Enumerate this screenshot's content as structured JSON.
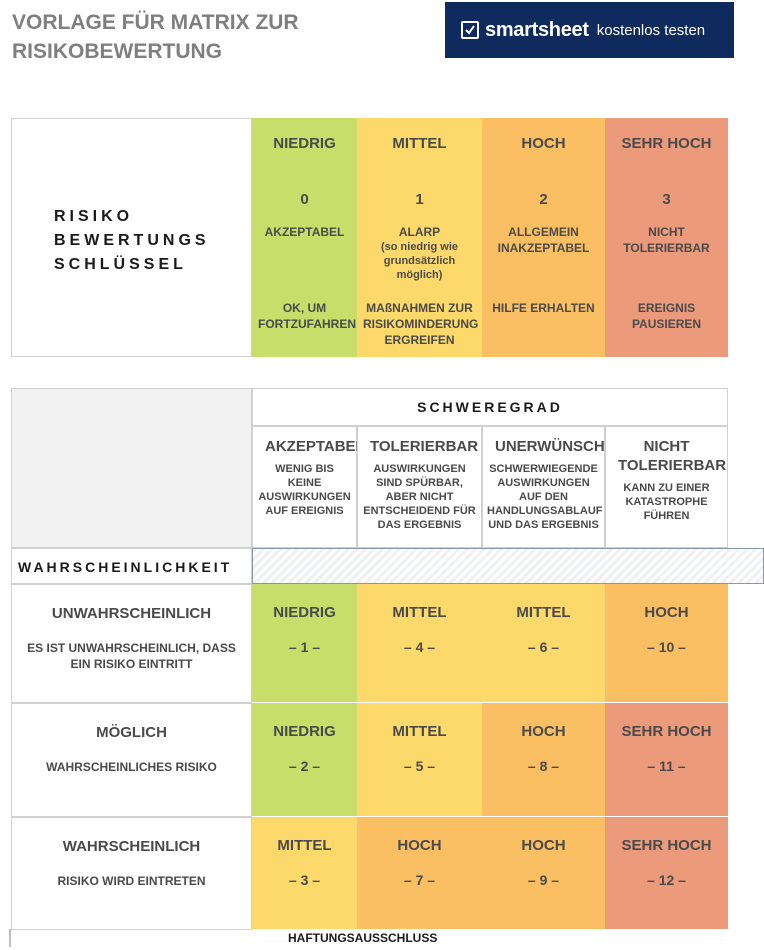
{
  "title": "VORLAGE FÜR MATRIX ZUR RISIKOBEWERTUNG",
  "banner": {
    "brand": "smartsheet",
    "cta": "kostenlos testen",
    "icon": "check-icon",
    "color": "#0f2a5c"
  },
  "key_table": {
    "label_lines": [
      "RISIKO",
      "BEWERTUNGS",
      "SCHLÜSSEL"
    ],
    "columns": [
      {
        "level": "NIEDRIG",
        "score": "0",
        "desc": "AKZEPTABEL",
        "note": "",
        "action": "OK, UM FORTZUFAHREN",
        "color": "#c9dd6b"
      },
      {
        "level": "MITTEL",
        "score": "1",
        "desc": "ALARP",
        "note": "(so niedrig wie grundsätzlich möglich)",
        "action": "MAßNAHMEN ZUR RISIKOMINDERUNG ERGREIFEN",
        "color": "#fcd96a"
      },
      {
        "level": "HOCH",
        "score": "2",
        "desc": "ALLGEMEIN INAKZEPTABEL",
        "note": "",
        "action": "HILFE ERHALTEN",
        "color": "#fbbf63"
      },
      {
        "level": "SEHR HOCH",
        "score": "3",
        "desc": "NICHT TOLERIERBAR",
        "note": "",
        "action": "EREIGNIS PAUSIEREN",
        "color": "#eb9a7c"
      }
    ]
  },
  "matrix": {
    "severity_label": "SCHWEREGRAD",
    "likelihood_label": "WAHRSCHEINLICHKEIT",
    "severity": [
      {
        "name": "AKZEPTABEL",
        "desc": "WENIG BIS KEINE AUSWIRKUNGEN AUF EREIGNIS"
      },
      {
        "name": "TOLERIERBAR",
        "desc": "AUSWIRKUNGEN SIND SPÜRBAR, ABER NICHT ENTSCHEIDEND FÜR DAS ERGEBNIS"
      },
      {
        "name": "UNERWÜNSCHT",
        "desc": "SCHWERWIEGENDE AUSWIRKUNGEN AUF DEN HANDLUNGSABLAUF UND DAS ERGEBNIS"
      },
      {
        "name": "NICHT TOLERIERBAR",
        "desc": "KANN ZU EINER KATASTROPHE FÜHREN"
      }
    ],
    "rows": [
      {
        "name": "UNWAHRSCHEINLICH",
        "desc": "ES IST UNWAHRSCHEINLICH, DASS EIN RISIKO EINTRITT",
        "cells": [
          {
            "level": "NIEDRIG",
            "num": "– 1 –",
            "tone": "green"
          },
          {
            "level": "MITTEL",
            "num": "– 4 –",
            "tone": "yellow"
          },
          {
            "level": "MITTEL",
            "num": "– 6 –",
            "tone": "yellow"
          },
          {
            "level": "HOCH",
            "num": "– 10 –",
            "tone": "orange"
          }
        ]
      },
      {
        "name": "MÖGLICH",
        "desc": "WAHRSCHEINLICHES RISIKO",
        "cells": [
          {
            "level": "NIEDRIG",
            "num": "– 2 –",
            "tone": "green"
          },
          {
            "level": "MITTEL",
            "num": "– 5 –",
            "tone": "yellow"
          },
          {
            "level": "HOCH",
            "num": "– 8 –",
            "tone": "orange"
          },
          {
            "level": "SEHR HOCH",
            "num": "– 11 –",
            "tone": "red"
          }
        ]
      },
      {
        "name": "WAHRSCHEINLICH",
        "desc": "RISIKO WIRD EINTRETEN",
        "cells": [
          {
            "level": "MITTEL",
            "num": "– 3 –",
            "tone": "yellow"
          },
          {
            "level": "HOCH",
            "num": "– 7 –",
            "tone": "orange"
          },
          {
            "level": "HOCH",
            "num": "– 9 –",
            "tone": "orange"
          },
          {
            "level": "SEHR HOCH",
            "num": "– 12 –",
            "tone": "red"
          }
        ]
      }
    ]
  },
  "footer": "HAFTUNGSAUSSCHLUSS"
}
